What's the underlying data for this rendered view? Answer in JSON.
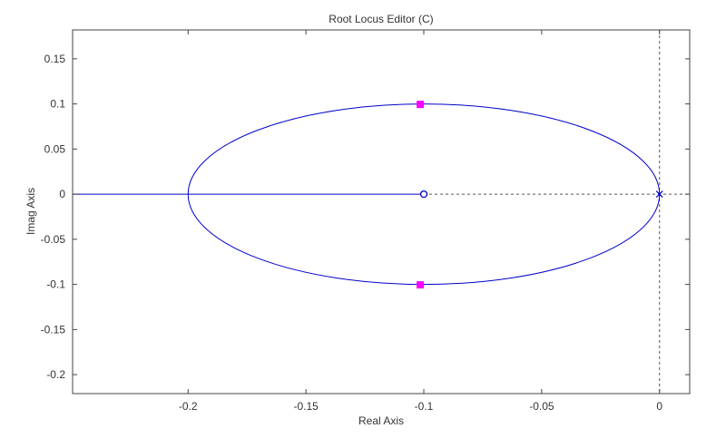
{
  "chart_data": {
    "type": "line",
    "title": "Root Locus Editor (C)",
    "xlabel": "Real Axis",
    "ylabel": "Imag Axis",
    "xlim": [
      -0.249,
      0.0128
    ],
    "ylim": [
      -0.221,
      0.182
    ],
    "grid": false,
    "x_ticks": [
      -0.2,
      -0.15,
      -0.1,
      -0.05,
      0
    ],
    "x_tick_labels": [
      "-0.2",
      "-0.15",
      "-0.1",
      "-0.05",
      "0"
    ],
    "y_ticks": [
      0.15,
      0.1,
      0.05,
      0,
      -0.05,
      -0.1,
      -0.15,
      -0.2
    ],
    "y_tick_labels": [
      "0.15",
      "0.1",
      "0.05",
      "0",
      "-0.05",
      "-0.1",
      "-0.15",
      "-0.2"
    ],
    "series": [
      {
        "kind": "locus-branch",
        "color": "#0000cc",
        "x": [
          -0.249,
          -0.2
        ],
        "y": [
          0,
          0
        ]
      },
      {
        "kind": "locus-branch",
        "color": "#0000cc",
        "x": [
          -0.2,
          -0.1
        ],
        "y": [
          0,
          0
        ]
      },
      {
        "kind": "locus-ellipse",
        "color": "#0000cc",
        "center": [
          -0.1,
          0
        ],
        "radius_real": 0.1,
        "radius_imag": 0.1
      }
    ],
    "poles": [
      {
        "x": 0,
        "y": 0,
        "color": "#0000cc"
      }
    ],
    "zeros": [
      {
        "x": -0.1,
        "y": 0,
        "color": "#0000cc"
      }
    ],
    "closed_loop_poles": [
      {
        "x": -0.1015,
        "y": 0.0995,
        "color": "#ff00ff"
      },
      {
        "x": -0.1015,
        "y": -0.1005,
        "color": "#ff00ff"
      }
    ],
    "reference_lines": [
      {
        "orientation": "horizontal",
        "value": 0,
        "from": -0.1,
        "to": 0.0128,
        "style": "dashed",
        "color": "#555555"
      },
      {
        "orientation": "vertical",
        "value": 0,
        "style": "dashed",
        "color": "#555555"
      }
    ]
  }
}
